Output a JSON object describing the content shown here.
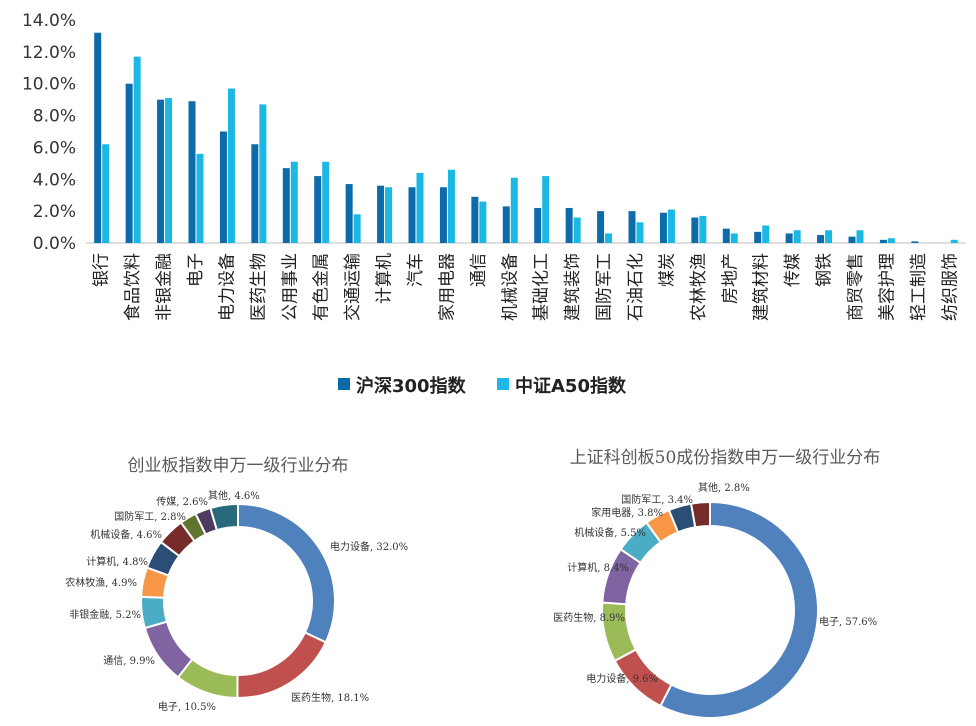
{
  "chart_data": [
    {
      "type": "bar",
      "categories": [
        "银行",
        "食品饮料",
        "非银金融",
        "电子",
        "电力设备",
        "医药生物",
        "公用事业",
        "有色金属",
        "交通运输",
        "计算机",
        "汽车",
        "家用电器",
        "通信",
        "机械设备",
        "基础化工",
        "建筑装饰",
        "国防军工",
        "石油石化",
        "煤炭",
        "农林牧渔",
        "房地产",
        "建筑材料",
        "传媒",
        "钢铁",
        "商贸零售",
        "美容护理",
        "轻工制造",
        "纺织服饰"
      ],
      "series": [
        {
          "name": "沪深300指数",
          "color": "#0C6BA8",
          "values": [
            13.2,
            10.0,
            9.0,
            8.9,
            7.0,
            6.2,
            4.7,
            4.2,
            3.7,
            3.6,
            3.5,
            3.5,
            2.9,
            2.3,
            2.2,
            2.2,
            2.0,
            2.0,
            1.9,
            1.6,
            0.9,
            0.7,
            0.6,
            0.5,
            0.4,
            0.2,
            0.1,
            0.0
          ]
        },
        {
          "name": "中证A50指数",
          "color": "#1CB8E4",
          "values": [
            6.2,
            11.7,
            9.1,
            5.6,
            9.7,
            8.7,
            5.1,
            5.1,
            1.8,
            3.5,
            4.4,
            4.6,
            2.6,
            4.1,
            4.2,
            1.6,
            0.6,
            1.3,
            2.1,
            1.7,
            0.6,
            1.1,
            0.8,
            0.8,
            0.8,
            0.3,
            0.0,
            0.2
          ]
        }
      ],
      "yticks": [
        "0.0%",
        "2.0%",
        "4.0%",
        "6.0%",
        "8.0%",
        "10.0%",
        "12.0%",
        "14.0%"
      ],
      "ylim": [
        0,
        14
      ],
      "legend_position": "bottom"
    },
    {
      "type": "pie",
      "variant": "donut",
      "title": "创业板指数申万一级行业分布",
      "slices": [
        {
          "name": "电力设备",
          "value": 32.0,
          "label": "电力设备, 32.0%",
          "color": "#4F81BD"
        },
        {
          "name": "医药生物",
          "value": 18.1,
          "label": "医药生物, 18.1%",
          "color": "#C0504D"
        },
        {
          "name": "电子",
          "value": 10.5,
          "label": "电子, 10.5%",
          "color": "#9BBB59"
        },
        {
          "name": "通信",
          "value": 9.9,
          "label": "通信, 9.9%",
          "color": "#8064A2"
        },
        {
          "name": "非银金融",
          "value": 5.2,
          "label": "非银金融, 5.2%",
          "color": "#4BACC6"
        },
        {
          "name": "农林牧渔",
          "value": 4.9,
          "label": "农林牧渔, 4.9%",
          "color": "#F79646"
        },
        {
          "name": "计算机",
          "value": 4.8,
          "label": "计算机, 4.8%",
          "color": "#2C4D75"
        },
        {
          "name": "机械设备",
          "value": 4.6,
          "label": "机械设备, 4.6%",
          "color": "#772C2A"
        },
        {
          "name": "国防军工",
          "value": 2.8,
          "label": "国防军工, 2.8%",
          "color": "#5F7530"
        },
        {
          "name": "传媒",
          "value": 2.6,
          "label": "传媒, 2.6%",
          "color": "#4D3B62"
        },
        {
          "name": "其他",
          "value": 4.6,
          "label": "其他, 4.6%",
          "color": "#276A7C"
        }
      ]
    },
    {
      "type": "pie",
      "variant": "donut",
      "title": "上证科创板50成份指数申万一级行业分布",
      "slices": [
        {
          "name": "电子",
          "value": 57.6,
          "label": "电子, 57.6%",
          "color": "#4F81BD"
        },
        {
          "name": "电力设备",
          "value": 9.6,
          "label": "电力设备, 9.6%",
          "color": "#C0504D"
        },
        {
          "name": "医药生物",
          "value": 8.9,
          "label": "医药生物, 8.9%",
          "color": "#9BBB59"
        },
        {
          "name": "计算机",
          "value": 8.4,
          "label": "计算机, 8.4%",
          "color": "#8064A2"
        },
        {
          "name": "机械设备",
          "value": 5.5,
          "label": "机械设备, 5.5%",
          "color": "#4BACC6"
        },
        {
          "name": "家用电器",
          "value": 3.8,
          "label": "家用电器, 3.8%",
          "color": "#F79646"
        },
        {
          "name": "国防军工",
          "value": 3.4,
          "label": "国防军工, 3.4%",
          "color": "#2C4D75"
        },
        {
          "name": "其他",
          "value": 2.8,
          "label": "其他, 2.8%",
          "color": "#772C2A"
        }
      ]
    }
  ]
}
